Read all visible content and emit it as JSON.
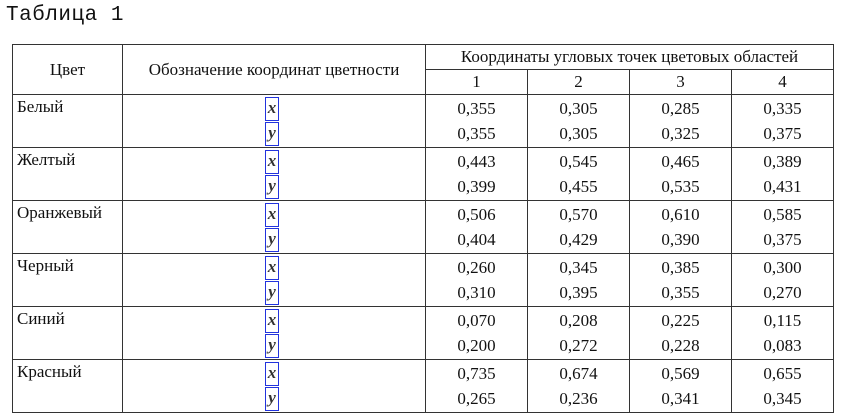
{
  "title": "Таблица 1",
  "headers": {
    "color": "Цвет",
    "designation": "Обозначение координат цветности",
    "coords": "Координаты угловых точек цветовых областей",
    "points": [
      "1",
      "2",
      "3",
      "4"
    ]
  },
  "coord_labels": {
    "x": "x",
    "y": "y"
  },
  "rows": [
    {
      "color": "Белый",
      "x": [
        "0,355",
        "0,305",
        "0,285",
        "0,335"
      ],
      "y": [
        "0,355",
        "0,305",
        "0,325",
        "0,375"
      ]
    },
    {
      "color": "Желтый",
      "x": [
        "0,443",
        "0,545",
        "0,465",
        "0,389"
      ],
      "y": [
        "0,399",
        "0,455",
        "0,535",
        "0,431"
      ]
    },
    {
      "color": "Оранжевый",
      "x": [
        "0,506",
        "0,570",
        "0,610",
        "0,585"
      ],
      "y": [
        "0,404",
        "0,429",
        "0,390",
        "0,375"
      ]
    },
    {
      "color": "Черный",
      "x": [
        "0,260",
        "0,345",
        "0,385",
        "0,300"
      ],
      "y": [
        "0,310",
        "0,395",
        "0,355",
        "0,270"
      ]
    },
    {
      "color": "Синий",
      "x": [
        "0,070",
        "0,208",
        "0,225",
        "0,115"
      ],
      "y": [
        "0,200",
        "0,272",
        "0,228",
        "0,083"
      ]
    },
    {
      "color": "Красный",
      "x": [
        "0,735",
        "0,674",
        "0,569",
        "0,655"
      ],
      "y": [
        "0,265",
        "0,236",
        "0,341",
        "0,345"
      ]
    }
  ]
}
